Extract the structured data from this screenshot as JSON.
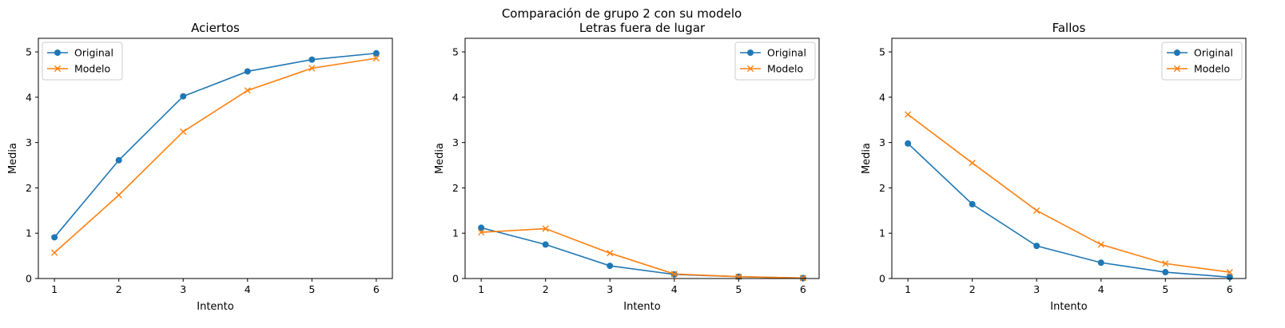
{
  "suptitle": "Comparación de grupo 2 con su modelo",
  "colors": {
    "original": "#1f77b4",
    "modelo": "#ff7f0e"
  },
  "chart_data": [
    {
      "type": "line",
      "title": "Aciertos",
      "xlabel": "Intento",
      "ylabel": "Media",
      "x": [
        1,
        2,
        3,
        4,
        5,
        6
      ],
      "xticks": [
        "1",
        "2",
        "3",
        "4",
        "5",
        "6"
      ],
      "yticks": [
        "0",
        "1",
        "2",
        "3",
        "4",
        "5"
      ],
      "ylim": [
        0,
        5.3
      ],
      "xlim": [
        0.75,
        6.25
      ],
      "legend": "upper left",
      "series": [
        {
          "name": "Original",
          "marker": "circle",
          "values": [
            0.91,
            2.61,
            4.02,
            4.57,
            4.83,
            4.97
          ]
        },
        {
          "name": "Modelo",
          "marker": "x",
          "values": [
            0.57,
            1.84,
            3.24,
            4.15,
            4.64,
            4.86
          ]
        }
      ]
    },
    {
      "type": "line",
      "title": "Letras fuera de lugar",
      "xlabel": "Intento",
      "ylabel": "Media",
      "x": [
        1,
        2,
        3,
        4,
        5,
        6
      ],
      "xticks": [
        "1",
        "2",
        "3",
        "4",
        "5",
        "6"
      ],
      "yticks": [
        "0",
        "1",
        "2",
        "3",
        "4",
        "5"
      ],
      "ylim": [
        0,
        5.3
      ],
      "xlim": [
        0.75,
        6.25
      ],
      "legend": "upper right",
      "series": [
        {
          "name": "Original",
          "marker": "circle",
          "values": [
            1.12,
            0.75,
            0.28,
            0.09,
            0.04,
            0.01
          ]
        },
        {
          "name": "Modelo",
          "marker": "x",
          "values": [
            1.02,
            1.1,
            0.56,
            0.1,
            0.04,
            0.01
          ]
        }
      ]
    },
    {
      "type": "line",
      "title": "Fallos",
      "xlabel": "Intento",
      "ylabel": "Media",
      "x": [
        1,
        2,
        3,
        4,
        5,
        6
      ],
      "xticks": [
        "1",
        "2",
        "3",
        "4",
        "5",
        "6"
      ],
      "yticks": [
        "0",
        "1",
        "2",
        "3",
        "4",
        "5"
      ],
      "ylim": [
        0,
        5.3
      ],
      "xlim": [
        0.75,
        6.25
      ],
      "legend": "upper right",
      "series": [
        {
          "name": "Original",
          "marker": "circle",
          "values": [
            2.98,
            1.64,
            0.72,
            0.35,
            0.14,
            0.03
          ]
        },
        {
          "name": "Modelo",
          "marker": "x",
          "values": [
            3.62,
            2.55,
            1.5,
            0.75,
            0.33,
            0.14
          ]
        }
      ]
    }
  ]
}
